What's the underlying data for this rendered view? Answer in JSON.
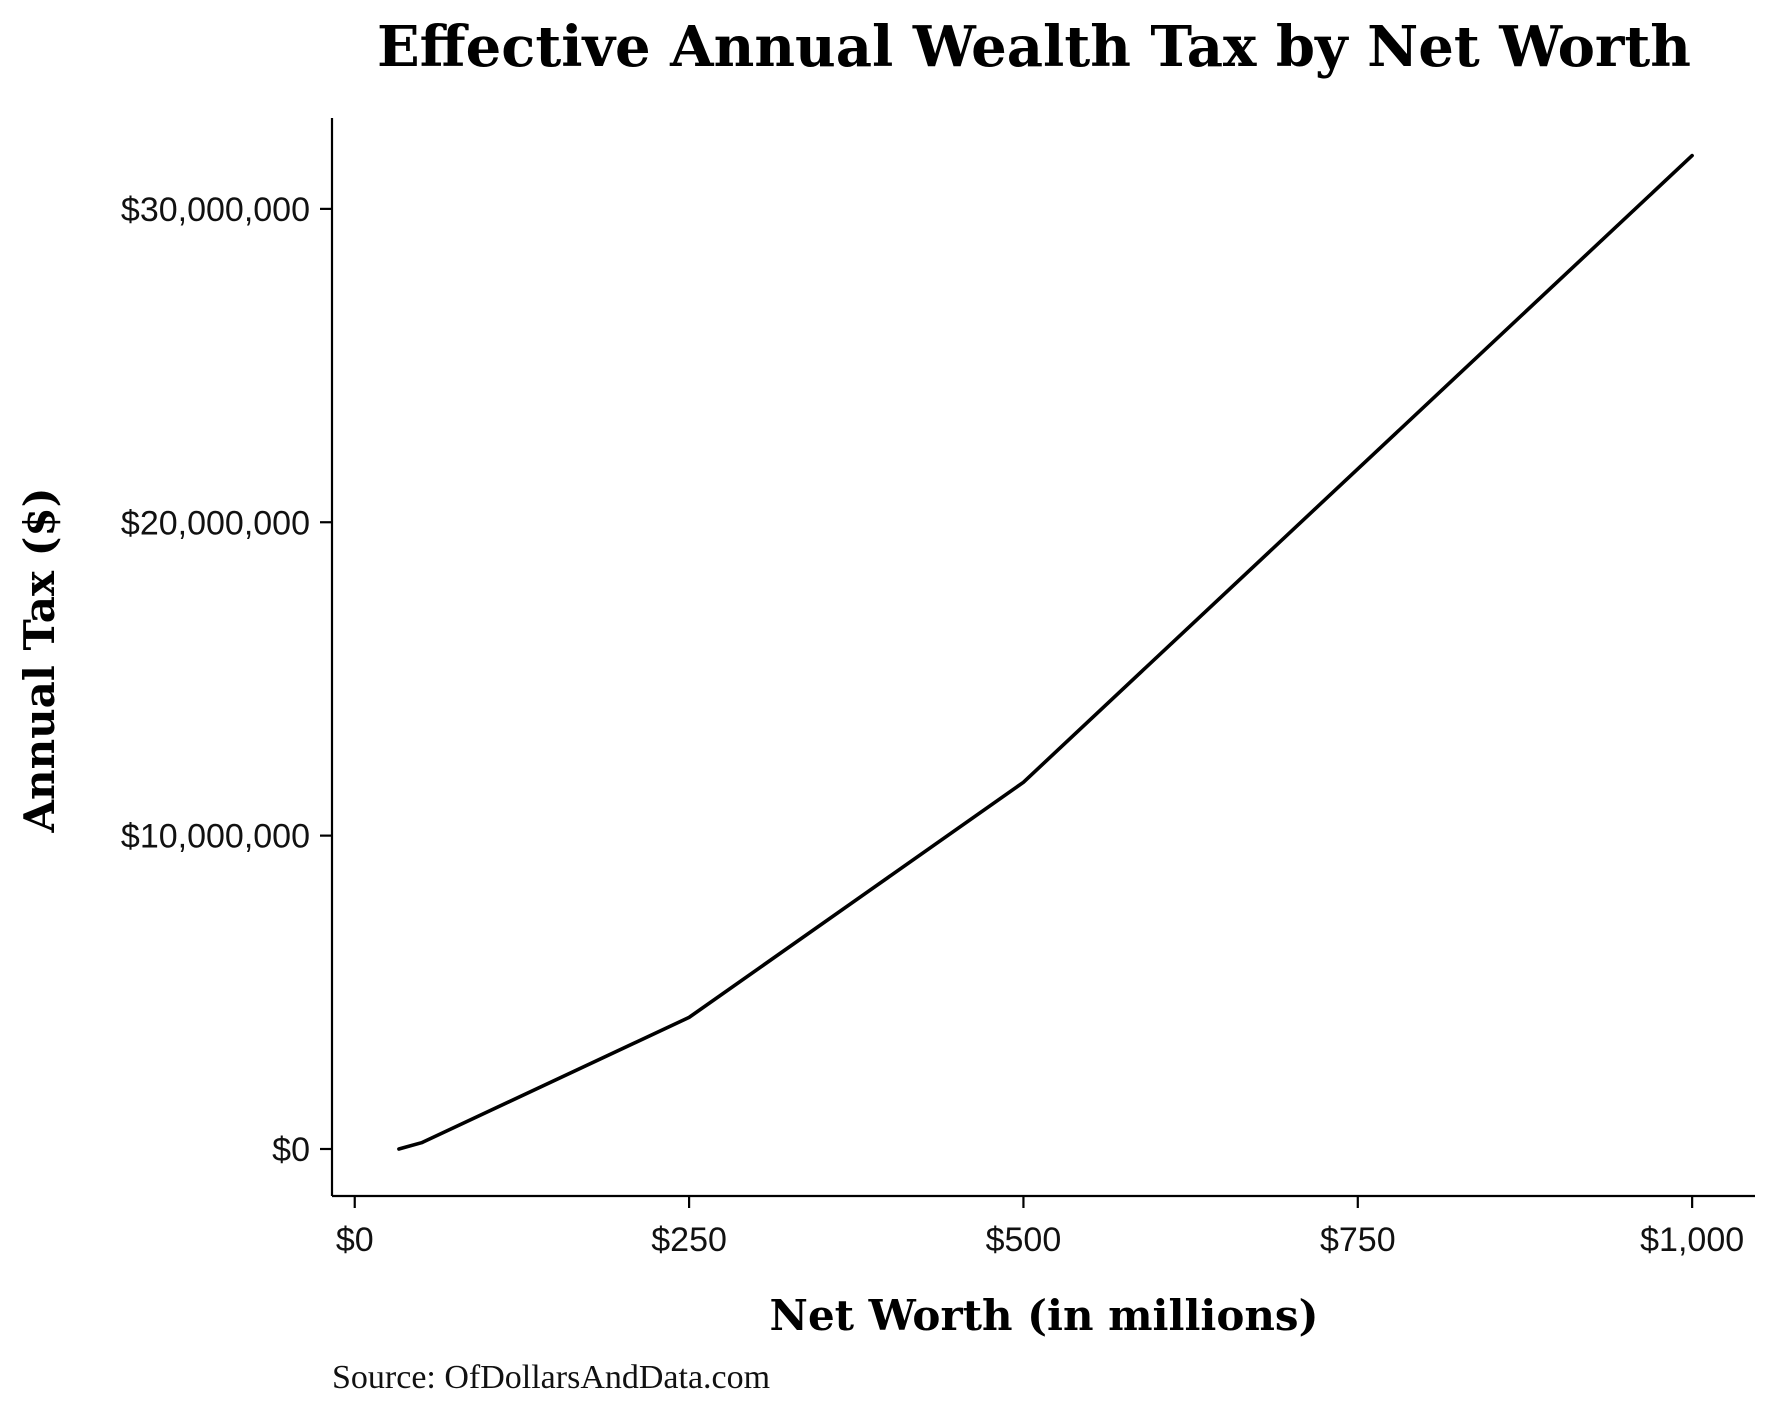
{
  "chart_data": {
    "type": "line",
    "title": "Effective Annual Wealth Tax by Net Worth",
    "xlabel": "Net Worth (in millions)",
    "ylabel": "Annual Tax ($)",
    "source": "Source:  OfDollarsAndData.com",
    "xlim": [
      -17,
      1047
    ],
    "ylim": [
      -1500000,
      32900000
    ],
    "x_ticks": [
      0,
      250,
      500,
      750,
      1000
    ],
    "x_tick_labels": [
      "$0",
      "$250",
      "$500",
      "$750",
      "$1,000"
    ],
    "y_ticks": [
      0,
      10000000,
      20000000,
      30000000
    ],
    "y_tick_labels": [
      "$0",
      "$10,000,000",
      "$20,000,000",
      "$30,000,000"
    ],
    "grid": false,
    "legend": "none",
    "line_color": "#000000",
    "series": [
      {
        "x": [
          33,
          50,
          250,
          500,
          1000
        ],
        "y": [
          0,
          200000,
          4200000,
          11700000,
          31700000
        ]
      }
    ]
  }
}
